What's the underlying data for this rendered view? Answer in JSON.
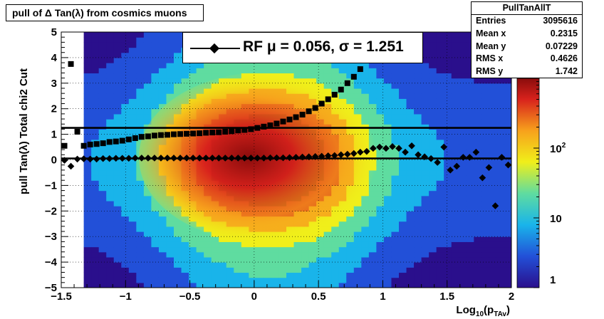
{
  "header": {
    "title": "pull of Δ Tan(λ) from cosmics muons"
  },
  "stats": {
    "name": "PullTanAllT",
    "rows": [
      {
        "label": "Entries",
        "value": "3095616"
      },
      {
        "label": "Mean x",
        "value": "0.2315"
      },
      {
        "label": "Mean y",
        "value": "0.07229"
      },
      {
        "label": "RMS x",
        "value": "0.4626"
      },
      {
        "label": "RMS y",
        "value": "1.742"
      }
    ]
  },
  "legend": {
    "text": "RF μ =  0.056, σ =   1.251"
  },
  "chart_data": {
    "type": "heatmap",
    "xlabel": "Log10(pTAv)",
    "ylabel": "pull Tan(λ)  Total chi2 Cut",
    "xlim": [
      -1.5,
      2
    ],
    "ylim": [
      -5,
      5
    ],
    "x_ticks": [
      "−1.5",
      "−1",
      "−0.5",
      "0",
      "0.5",
      "1",
      "1.5",
      "2"
    ],
    "y_ticks": [
      "−5",
      "−4",
      "−3",
      "−2",
      "−1",
      "0",
      "1",
      "2",
      "3",
      "4",
      "5"
    ],
    "z_scale": "log",
    "z_range": [
      1,
      1000
    ],
    "z_ticks": [
      "1",
      "10",
      "10^2"
    ],
    "grid": true,
    "colormap": [
      "#2a0f8c",
      "#2250d8",
      "#19b4ea",
      "#5fdca0",
      "#f0ef1a",
      "#f7a11c",
      "#d8221c",
      "#8a0c0c"
    ],
    "band": {
      "mu": 0.056,
      "sigma": 1.251
    },
    "series": [
      {
        "name": "mean",
        "marker": "diamond",
        "x": [
          -1.475,
          -1.425,
          -1.375,
          -1.325,
          -1.275,
          -1.225,
          -1.175,
          -1.125,
          -1.075,
          -1.025,
          -0.975,
          -0.925,
          -0.875,
          -0.825,
          -0.775,
          -0.725,
          -0.675,
          -0.625,
          -0.575,
          -0.525,
          -0.475,
          -0.425,
          -0.375,
          -0.325,
          -0.275,
          -0.225,
          -0.175,
          -0.125,
          -0.075,
          -0.025,
          0.025,
          0.075,
          0.125,
          0.175,
          0.225,
          0.275,
          0.325,
          0.375,
          0.425,
          0.475,
          0.525,
          0.575,
          0.625,
          0.675,
          0.725,
          0.775,
          0.825,
          0.875,
          0.925,
          0.975,
          1.025,
          1.075,
          1.125,
          1.175,
          1.225,
          1.275,
          1.325,
          1.375,
          1.425,
          1.475,
          1.525,
          1.575,
          1.625,
          1.675,
          1.725,
          1.775,
          1.825,
          1.875,
          1.925,
          1.975
        ],
        "y": [
          -0.02,
          -0.25,
          0.03,
          0.04,
          0.03,
          0.03,
          0.05,
          0.05,
          0.06,
          0.06,
          0.06,
          0.07,
          0.07,
          0.07,
          0.07,
          0.07,
          0.07,
          0.07,
          0.07,
          0.07,
          0.07,
          0.07,
          0.07,
          0.07,
          0.07,
          0.07,
          0.07,
          0.07,
          0.07,
          0.07,
          0.07,
          0.07,
          0.08,
          0.08,
          0.08,
          0.09,
          0.1,
          0.11,
          0.12,
          0.13,
          0.14,
          0.16,
          0.17,
          0.2,
          0.22,
          0.25,
          0.3,
          0.33,
          0.45,
          0.5,
          0.45,
          0.52,
          0.45,
          0.3,
          0.55,
          0.2,
          0.12,
          0.05,
          -0.1,
          0.5,
          -0.4,
          -0.25,
          0.1,
          0.1,
          0.3,
          -0.7,
          -0.3,
          -1.8,
          0.1,
          -0.2
        ]
      },
      {
        "name": "sigma",
        "marker": "square",
        "x": [
          -1.475,
          -1.425,
          -1.375,
          -1.325,
          -1.275,
          -1.225,
          -1.175,
          -1.125,
          -1.075,
          -1.025,
          -0.975,
          -0.925,
          -0.875,
          -0.825,
          -0.775,
          -0.725,
          -0.675,
          -0.625,
          -0.575,
          -0.525,
          -0.475,
          -0.425,
          -0.375,
          -0.325,
          -0.275,
          -0.225,
          -0.175,
          -0.125,
          -0.075,
          -0.025,
          0.025,
          0.075,
          0.125,
          0.175,
          0.225,
          0.275,
          0.325,
          0.375,
          0.425,
          0.475,
          0.525,
          0.575,
          0.625,
          0.675,
          0.725,
          0.775,
          0.825
        ],
        "y": [
          0.55,
          3.75,
          1.1,
          0.55,
          0.6,
          0.62,
          0.65,
          0.7,
          0.72,
          0.75,
          0.8,
          0.85,
          0.9,
          0.92,
          0.95,
          0.97,
          0.98,
          1.0,
          1.01,
          1.02,
          1.03,
          1.04,
          1.06,
          1.07,
          1.08,
          1.1,
          1.12,
          1.15,
          1.17,
          1.2,
          1.25,
          1.3,
          1.35,
          1.42,
          1.5,
          1.58,
          1.67,
          1.77,
          1.9,
          2.03,
          2.2,
          2.37,
          2.55,
          2.75,
          3.0,
          3.25,
          3.55
        ]
      }
    ]
  }
}
